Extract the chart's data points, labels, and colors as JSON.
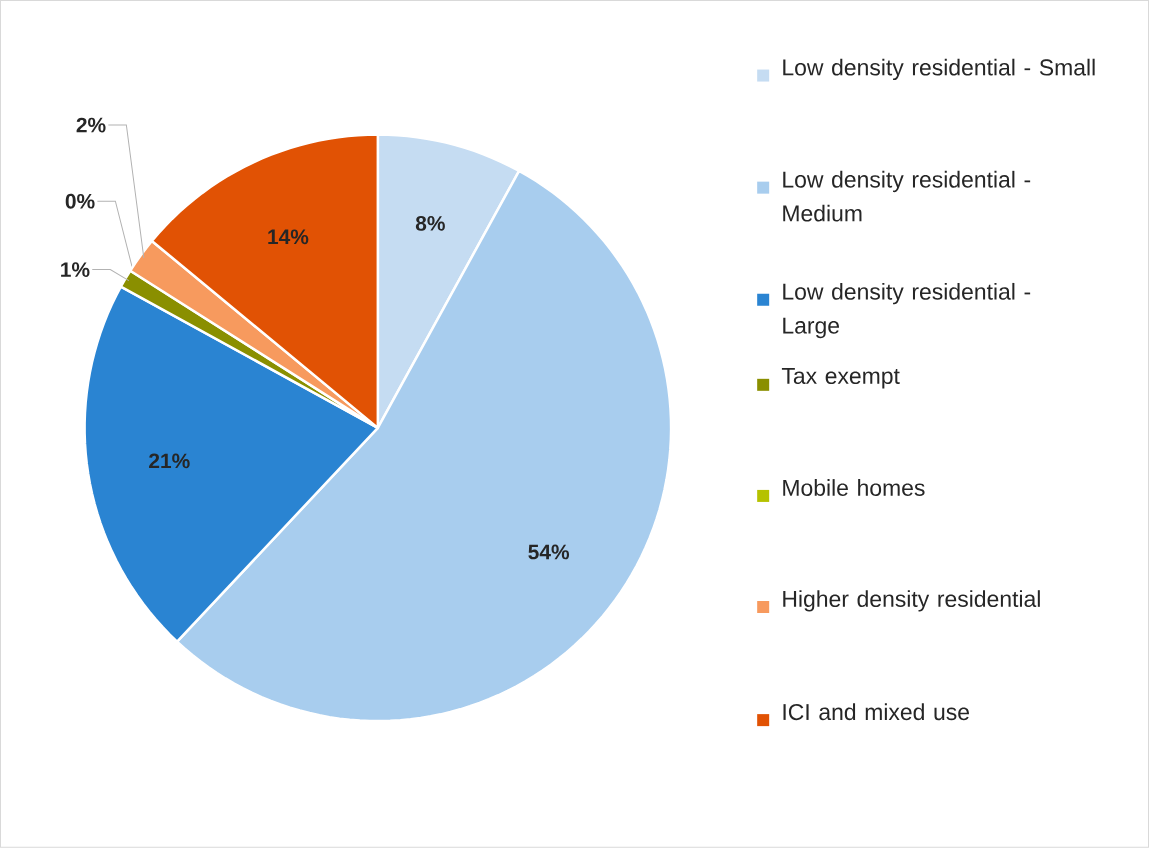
{
  "chart_data": {
    "type": "pie",
    "categories": [
      "Low density residential - Small",
      "Low density residential - Medium",
      "Low density residential - Large",
      "Tax exempt",
      "Mobile homes",
      "Higher density residential",
      "ICI and mixed use"
    ],
    "values": [
      8,
      54,
      21,
      1,
      0,
      2,
      14
    ],
    "value_labels": [
      "8%",
      "54%",
      "21%",
      "1%",
      "0%",
      "2%",
      "14%"
    ],
    "colors": [
      "#c5dcf2",
      "#a8cdee",
      "#2a84d2",
      "#8a8f00",
      "#b5c200",
      "#f79a5e",
      "#e15204"
    ],
    "legend": "right"
  }
}
